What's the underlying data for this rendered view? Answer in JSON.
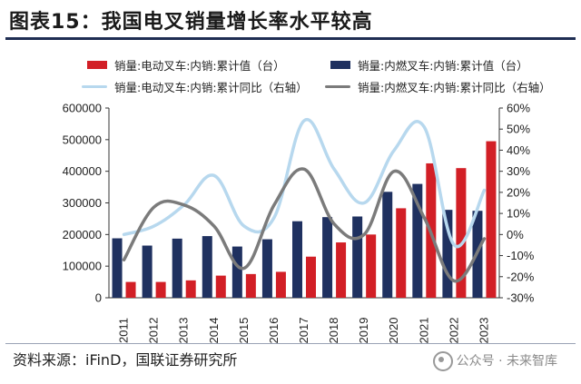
{
  "title": "图表15：我国电叉销量增长率水平较高",
  "source": "资料来源：iFinD，国联证券研究所",
  "watermark": "公众号 · 未来智库",
  "colors": {
    "ev_bar": "#d21f26",
    "ice_bar": "#1f3160",
    "ev_line": "#b7d8ee",
    "ice_line": "#7b7b7b"
  },
  "chart_data": {
    "type": "bar",
    "categories": [
      "2011",
      "2012",
      "2013",
      "2014",
      "2015",
      "2016",
      "2017",
      "2018",
      "2019",
      "2020",
      "2021",
      "2022",
      "2023"
    ],
    "series": [
      {
        "name": "销量:电动叉车:内销:累计值（台）",
        "kind": "bar",
        "axis": "left",
        "values": [
          50000,
          50000,
          55000,
          70000,
          75000,
          82000,
          130000,
          175000,
          200000,
          283000,
          425000,
          410000,
          495000
        ]
      },
      {
        "name": "销量:内燃叉车:内销:累计值（台）",
        "kind": "bar",
        "axis": "left",
        "values": [
          188000,
          165000,
          187000,
          195000,
          162000,
          185000,
          242000,
          255000,
          257000,
          335000,
          360000,
          278000,
          275000
        ]
      },
      {
        "name": "销量:电动叉车:内销:累计同比（右轴）",
        "kind": "line",
        "axis": "right",
        "values": [
          0,
          4,
          14,
          28,
          4,
          8,
          54,
          31,
          15,
          40,
          51,
          -5,
          21
        ]
      },
      {
        "name": "销量:内燃叉车:内销:累计同比（右轴）",
        "kind": "line",
        "axis": "right",
        "values": [
          -12,
          13,
          14,
          4,
          -16,
          14,
          31,
          5,
          0,
          30,
          8,
          -22,
          -2
        ]
      }
    ],
    "y_left": {
      "min": 0,
      "max": 600000,
      "step": 100000,
      "ticks": [
        "0",
        "100000",
        "200000",
        "300000",
        "400000",
        "500000",
        "600000"
      ]
    },
    "y_right": {
      "min": -30,
      "max": 60,
      "step": 10,
      "ticks": [
        "-30%",
        "-20%",
        "-10%",
        "0%",
        "10%",
        "20%",
        "30%",
        "40%",
        "50%",
        "60%"
      ]
    },
    "legend_position": "top"
  }
}
